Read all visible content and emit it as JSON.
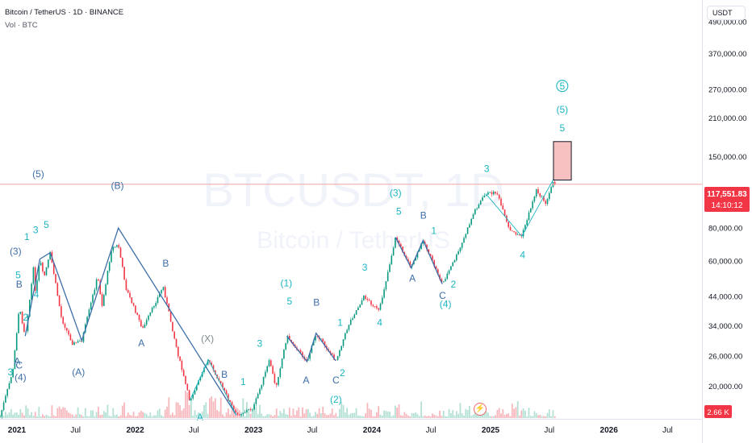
{
  "header": {
    "symbol_line": "Bitcoin / TetherUS · 1D · BINANCE",
    "volume_line": "Vol · BTC",
    "currency_button": "USDT"
  },
  "watermark": {
    "ticker": "BTCUSDT, 1D",
    "name": "Bitcoin / TetherUS"
  },
  "price_scale": {
    "labels": [
      "490,000.00",
      "370,000.00",
      "270,000.00",
      "210,000.00",
      "150,000.00",
      "80,000.00",
      "60,000.00",
      "44,000.00",
      "34,000.00",
      "26,000.00",
      "20,000.00"
    ]
  },
  "current_price": {
    "value": "117,551.83",
    "countdown": "14:10:12",
    "color": "#f23645"
  },
  "volume_badge": {
    "value": "2.66 K",
    "color": "#f23645"
  },
  "time_axis": {
    "labels": [
      "2021",
      "Jul",
      "2022",
      "Jul",
      "2023",
      "Jul",
      "2024",
      "Jul",
      "2025",
      "Jul",
      "2026",
      "Jul"
    ]
  },
  "icons": {
    "flash": "lightning-icon"
  },
  "colors": {
    "up": "#089981",
    "down": "#f23645",
    "wave_teal": "#1cb5c3",
    "wave_blue": "#3d6ea8",
    "target_box": "#f7c1c1"
  },
  "chart_data": {
    "type": "candlestick",
    "title": "Bitcoin / TetherUS · 1D · BINANCE",
    "y_scale": "log",
    "ylim": [
      15000,
      560000
    ],
    "x_range": [
      "2020-11-10",
      "2026-10-15"
    ],
    "price_path": [
      {
        "date": "2020-11-10",
        "price": 15300
      },
      {
        "date": "2020-12-20",
        "price": 23000
      },
      {
        "date": "2021-01-08",
        "price": 40000
      },
      {
        "date": "2021-01-27",
        "price": 31000
      },
      {
        "date": "2021-02-21",
        "price": 56000
      },
      {
        "date": "2021-02-28",
        "price": 45000
      },
      {
        "date": "2021-03-13",
        "price": 61000
      },
      {
        "date": "2021-03-25",
        "price": 51500
      },
      {
        "date": "2021-04-14",
        "price": 64500
      },
      {
        "date": "2021-05-19",
        "price": 36000
      },
      {
        "date": "2021-06-22",
        "price": 29000
      },
      {
        "date": "2021-07-20",
        "price": 29800
      },
      {
        "date": "2021-09-07",
        "price": 52500
      },
      {
        "date": "2021-09-21",
        "price": 40500
      },
      {
        "date": "2021-10-20",
        "price": 67000
      },
      {
        "date": "2021-11-10",
        "price": 69000
      },
      {
        "date": "2021-12-04",
        "price": 47000
      },
      {
        "date": "2022-01-24",
        "price": 33000
      },
      {
        "date": "2022-03-28",
        "price": 48000
      },
      {
        "date": "2022-05-12",
        "price": 26700
      },
      {
        "date": "2022-06-18",
        "price": 17600
      },
      {
        "date": "2022-08-15",
        "price": 25200
      },
      {
        "date": "2022-11-09",
        "price": 15500
      },
      {
        "date": "2022-12-31",
        "price": 16500
      },
      {
        "date": "2023-02-20",
        "price": 25200
      },
      {
        "date": "2023-03-10",
        "price": 19600
      },
      {
        "date": "2023-04-14",
        "price": 31000
      },
      {
        "date": "2023-06-15",
        "price": 24800
      },
      {
        "date": "2023-07-13",
        "price": 31800
      },
      {
        "date": "2023-09-11",
        "price": 25000
      },
      {
        "date": "2023-10-24",
        "price": 35000
      },
      {
        "date": "2023-12-08",
        "price": 44000
      },
      {
        "date": "2024-01-23",
        "price": 38500
      },
      {
        "date": "2024-03-14",
        "price": 73800
      },
      {
        "date": "2024-05-01",
        "price": 56500
      },
      {
        "date": "2024-06-07",
        "price": 71900
      },
      {
        "date": "2024-08-05",
        "price": 49000
      },
      {
        "date": "2024-09-27",
        "price": 66000
      },
      {
        "date": "2024-11-13",
        "price": 93500
      },
      {
        "date": "2024-12-17",
        "price": 108300
      },
      {
        "date": "2025-01-20",
        "price": 109500
      },
      {
        "date": "2025-02-28",
        "price": 78200
      },
      {
        "date": "2025-04-07",
        "price": 74500
      },
      {
        "date": "2025-05-22",
        "price": 111900
      },
      {
        "date": "2025-06-22",
        "price": 99000
      },
      {
        "date": "2025-07-14",
        "price": 123000
      },
      {
        "date": "2025-07-20",
        "price": 117551.83
      }
    ],
    "wave_lines": [
      {
        "color": "blue",
        "points": [
          [
            "2021-01-27",
            31000
          ],
          [
            "2021-03-13",
            61000
          ],
          [
            "2021-04-14",
            64500
          ]
        ]
      },
      {
        "color": "blue",
        "points": [
          [
            "2021-04-14",
            64500
          ],
          [
            "2021-07-20",
            29800
          ],
          [
            "2021-11-10",
            80000
          ],
          [
            "2022-11-09",
            15500
          ]
        ]
      },
      {
        "color": "teal",
        "points": [
          [
            "2022-06-18",
            17600
          ],
          [
            "2022-08-15",
            25200
          ],
          [
            "2022-11-09",
            15500
          ]
        ]
      },
      {
        "color": "blue",
        "points": [
          [
            "2023-04-14",
            31000
          ],
          [
            "2023-06-15",
            24800
          ],
          [
            "2023-07-13",
            31800
          ],
          [
            "2023-09-11",
            25000
          ]
        ]
      },
      {
        "color": "blue",
        "points": [
          [
            "2024-03-14",
            73800
          ],
          [
            "2024-05-01",
            56500
          ],
          [
            "2024-06-07",
            71900
          ],
          [
            "2024-08-05",
            49000
          ]
        ]
      },
      {
        "color": "teal",
        "points": [
          [
            "2024-12-17",
            108300
          ],
          [
            "2025-04-07",
            74500
          ],
          [
            "2025-07-14",
            123000
          ]
        ]
      }
    ],
    "target_box": {
      "x0": "2025-07-14",
      "x1": "2025-09-07",
      "y0": 122000,
      "y1": 171000
    },
    "horizontal_line": 117551.83,
    "wave_labels": [
      {
        "t": "3",
        "x": "2020-12-12",
        "y": 22000,
        "c": "teal"
      },
      {
        "t": "(4)",
        "x": "2021-01-12",
        "y": 21000,
        "c": "blue"
      },
      {
        "t": "A",
        "x": "2021-01-02",
        "y": 24200,
        "c": "blue"
      },
      {
        "t": "C",
        "x": "2021-01-08",
        "y": 23300,
        "c": "blue"
      },
      {
        "t": "B",
        "x": "2021-01-08",
        "y": 47500,
        "c": "blue"
      },
      {
        "t": "5",
        "x": "2021-01-05",
        "y": 51500,
        "c": "teal"
      },
      {
        "t": "2",
        "x": "2021-01-28",
        "y": 35500,
        "c": "teal"
      },
      {
        "t": "4",
        "x": "2021-03-02",
        "y": 43500,
        "c": "teal"
      },
      {
        "t": "(3)",
        "x": "2020-12-28",
        "y": 63500,
        "c": "blue"
      },
      {
        "t": "1",
        "x": "2021-02-01",
        "y": 72000,
        "c": "teal"
      },
      {
        "t": "3",
        "x": "2021-02-28",
        "y": 76500,
        "c": "teal"
      },
      {
        "t": "5",
        "x": "2021-04-02",
        "y": 80000,
        "c": "teal"
      },
      {
        "t": "(5)",
        "x": "2021-03-08",
        "y": 125000,
        "c": "blue"
      },
      {
        "t": "(A)",
        "x": "2021-07-10",
        "y": 22000,
        "c": "blue"
      },
      {
        "t": "(B)",
        "x": "2021-11-07",
        "y": 113000,
        "c": "blue"
      },
      {
        "t": "A",
        "x": "2022-01-20",
        "y": 28300,
        "c": "blue"
      },
      {
        "t": "B",
        "x": "2022-04-05",
        "y": 57000,
        "c": "blue"
      },
      {
        "t": "(X)",
        "x": "2022-08-12",
        "y": 29500,
        "c": "gray"
      },
      {
        "t": "A",
        "x": "2022-07-20",
        "y": 14800,
        "c": "teal"
      },
      {
        "t": "B",
        "x": "2022-10-03",
        "y": 21500,
        "c": "blue"
      },
      {
        "t": "1",
        "x": "2022-11-30",
        "y": 20200,
        "c": "teal"
      },
      {
        "t": "3",
        "x": "2023-01-20",
        "y": 28200,
        "c": "teal"
      },
      {
        "t": "(1)",
        "x": "2023-04-12",
        "y": 48000,
        "c": "teal"
      },
      {
        "t": "5",
        "x": "2023-04-22",
        "y": 41000,
        "c": "teal"
      },
      {
        "t": "A",
        "x": "2023-06-12",
        "y": 20500,
        "c": "blue"
      },
      {
        "t": "B",
        "x": "2023-07-14",
        "y": 40500,
        "c": "blue"
      },
      {
        "t": "C",
        "x": "2023-09-12",
        "y": 20500,
        "c": "blue"
      },
      {
        "t": "2",
        "x": "2023-10-02",
        "y": 21800,
        "c": "teal"
      },
      {
        "t": "(2)",
        "x": "2023-09-12",
        "y": 17300,
        "c": "teal"
      },
      {
        "t": "1",
        "x": "2023-09-25",
        "y": 34000,
        "c": "teal"
      },
      {
        "t": "3",
        "x": "2023-12-10",
        "y": 55000,
        "c": "teal"
      },
      {
        "t": "4",
        "x": "2024-01-25",
        "y": 34000,
        "c": "teal"
      },
      {
        "t": "(3)",
        "x": "2024-03-14",
        "y": 106000,
        "c": "teal"
      },
      {
        "t": "5",
        "x": "2024-03-24",
        "y": 90000,
        "c": "teal"
      },
      {
        "t": "A",
        "x": "2024-05-05",
        "y": 50000,
        "c": "blue"
      },
      {
        "t": "B",
        "x": "2024-06-08",
        "y": 87000,
        "c": "blue"
      },
      {
        "t": "1",
        "x": "2024-07-10",
        "y": 76000,
        "c": "teal"
      },
      {
        "t": "2",
        "x": "2024-09-08",
        "y": 47500,
        "c": "teal"
      },
      {
        "t": "C",
        "x": "2024-08-06",
        "y": 43000,
        "c": "blue"
      },
      {
        "t": "(4)",
        "x": "2024-08-15",
        "y": 40000,
        "c": "teal"
      },
      {
        "t": "3",
        "x": "2024-12-20",
        "y": 131000,
        "c": "teal"
      },
      {
        "t": "4",
        "x": "2025-04-10",
        "y": 61500,
        "c": "teal"
      },
      {
        "t": "5",
        "x": "2025-08-10",
        "y": 187000,
        "c": "teal"
      },
      {
        "t": "(5)",
        "x": "2025-08-10",
        "y": 220000,
        "c": "teal"
      },
      {
        "t": "5",
        "x": "2025-08-10",
        "y": 270000,
        "c": "teal",
        "circled": true
      }
    ]
  }
}
